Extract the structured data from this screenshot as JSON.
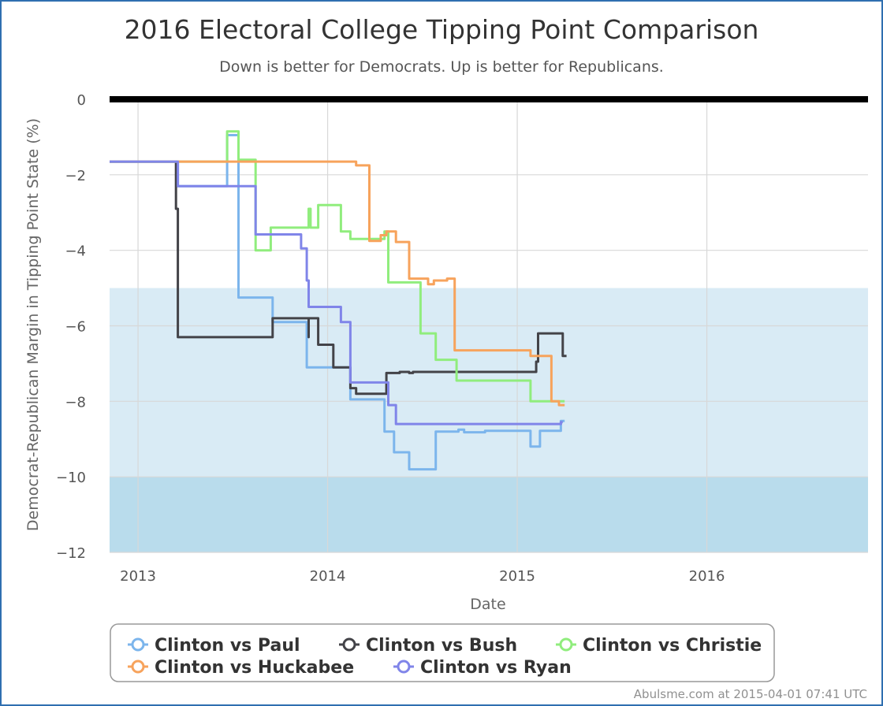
{
  "chart_data": {
    "type": "line",
    "title": "2016 Electoral College Tipping Point Comparison",
    "subtitle": "Down is better for Democrats. Up is better for Republicans.",
    "xlabel": "Date",
    "ylabel": "Democrat-Republican Margin in Tipping Point State (%)",
    "xlim": [
      2012.85,
      2016.85
    ],
    "ylim": [
      -12,
      0
    ],
    "x_ticks": [
      2013,
      2014,
      2015,
      2016
    ],
    "x_tick_labels": [
      "2013",
      "2014",
      "2015",
      "2016"
    ],
    "y_ticks": [
      0,
      -2,
      -4,
      -6,
      -8,
      -10,
      -12
    ],
    "y_tick_labels": [
      "0",
      "−2",
      "−4",
      "−6",
      "−8",
      "−10",
      "−12"
    ],
    "grid": true,
    "bands": [
      {
        "from": -5,
        "to": -10,
        "color": "#d9ebf5"
      },
      {
        "from": -10,
        "to": -12,
        "color": "#b9dcec"
      }
    ],
    "legend_position": "bottom",
    "series": [
      {
        "name": "Clinton vs Paul",
        "color": "#7cb5ec",
        "points": [
          [
            2012.85,
            -1.65
          ],
          [
            2013.21,
            -1.65
          ],
          [
            2013.21,
            -2.3
          ],
          [
            2013.47,
            -2.3
          ],
          [
            2013.47,
            -0.95
          ],
          [
            2013.53,
            -0.95
          ],
          [
            2013.53,
            -5.25
          ],
          [
            2013.71,
            -5.25
          ],
          [
            2013.71,
            -5.9
          ],
          [
            2013.89,
            -5.9
          ],
          [
            2013.89,
            -7.1
          ],
          [
            2014.12,
            -7.1
          ],
          [
            2014.12,
            -7.95
          ],
          [
            2014.3,
            -7.95
          ],
          [
            2014.3,
            -8.8
          ],
          [
            2014.35,
            -8.8
          ],
          [
            2014.35,
            -9.35
          ],
          [
            2014.43,
            -9.35
          ],
          [
            2014.43,
            -9.8
          ],
          [
            2014.57,
            -9.8
          ],
          [
            2014.57,
            -8.8
          ],
          [
            2014.69,
            -8.8
          ],
          [
            2014.69,
            -8.75
          ],
          [
            2014.72,
            -8.75
          ],
          [
            2014.72,
            -8.82
          ],
          [
            2014.83,
            -8.82
          ],
          [
            2014.83,
            -8.78
          ],
          [
            2015.07,
            -8.78
          ],
          [
            2015.07,
            -9.2
          ],
          [
            2015.12,
            -9.2
          ],
          [
            2015.12,
            -8.78
          ],
          [
            2015.23,
            -8.78
          ],
          [
            2015.23,
            -8.52
          ],
          [
            2015.25,
            -8.52
          ]
        ]
      },
      {
        "name": "Clinton vs Bush",
        "color": "#434348",
        "points": [
          [
            2012.85,
            -1.65
          ],
          [
            2013.2,
            -1.65
          ],
          [
            2013.2,
            -2.9
          ],
          [
            2013.21,
            -2.9
          ],
          [
            2013.21,
            -6.3
          ],
          [
            2013.71,
            -6.3
          ],
          [
            2013.71,
            -5.8
          ],
          [
            2013.9,
            -5.8
          ],
          [
            2013.9,
            -6.3
          ],
          [
            2013.9,
            -5.8
          ],
          [
            2013.95,
            -5.8
          ],
          [
            2013.95,
            -6.5
          ],
          [
            2014.03,
            -6.5
          ],
          [
            2014.03,
            -7.1
          ],
          [
            2014.12,
            -7.1
          ],
          [
            2014.12,
            -7.65
          ],
          [
            2014.15,
            -7.65
          ],
          [
            2014.15,
            -7.8
          ],
          [
            2014.31,
            -7.8
          ],
          [
            2014.31,
            -7.25
          ],
          [
            2014.38,
            -7.25
          ],
          [
            2014.38,
            -7.22
          ],
          [
            2014.43,
            -7.22
          ],
          [
            2014.43,
            -7.25
          ],
          [
            2014.45,
            -7.25
          ],
          [
            2014.45,
            -7.22
          ],
          [
            2015.1,
            -7.22
          ],
          [
            2015.1,
            -6.95
          ],
          [
            2015.11,
            -6.95
          ],
          [
            2015.11,
            -6.2
          ],
          [
            2015.24,
            -6.2
          ],
          [
            2015.24,
            -6.8
          ],
          [
            2015.26,
            -6.8
          ]
        ]
      },
      {
        "name": "Clinton vs Christie",
        "color": "#90ed7d",
        "points": [
          [
            2012.85,
            -1.65
          ],
          [
            2013.47,
            -1.65
          ],
          [
            2013.47,
            -0.85
          ],
          [
            2013.53,
            -0.85
          ],
          [
            2013.53,
            -1.6
          ],
          [
            2013.62,
            -1.6
          ],
          [
            2013.62,
            -4.0
          ],
          [
            2013.7,
            -4.0
          ],
          [
            2013.7,
            -3.4
          ],
          [
            2013.9,
            -3.4
          ],
          [
            2013.9,
            -2.9
          ],
          [
            2013.91,
            -2.9
          ],
          [
            2013.91,
            -3.4
          ],
          [
            2013.95,
            -3.4
          ],
          [
            2013.95,
            -2.8
          ],
          [
            2014.07,
            -2.8
          ],
          [
            2014.07,
            -3.5
          ],
          [
            2014.12,
            -3.5
          ],
          [
            2014.12,
            -3.7
          ],
          [
            2014.3,
            -3.7
          ],
          [
            2014.3,
            -3.5
          ],
          [
            2014.32,
            -3.5
          ],
          [
            2014.32,
            -4.85
          ],
          [
            2014.49,
            -4.85
          ],
          [
            2014.49,
            -6.2
          ],
          [
            2014.57,
            -6.2
          ],
          [
            2014.57,
            -6.9
          ],
          [
            2014.68,
            -6.9
          ],
          [
            2014.68,
            -7.45
          ],
          [
            2015.07,
            -7.45
          ],
          [
            2015.07,
            -8.0
          ],
          [
            2015.25,
            -8.0
          ]
        ]
      },
      {
        "name": "Clinton vs Huckabee",
        "color": "#f7a35c",
        "points": [
          [
            2012.85,
            -1.65
          ],
          [
            2014.15,
            -1.65
          ],
          [
            2014.15,
            -1.75
          ],
          [
            2014.22,
            -1.75
          ],
          [
            2014.22,
            -3.75
          ],
          [
            2014.28,
            -3.75
          ],
          [
            2014.28,
            -3.6
          ],
          [
            2014.31,
            -3.6
          ],
          [
            2014.31,
            -3.5
          ],
          [
            2014.36,
            -3.5
          ],
          [
            2014.36,
            -3.78
          ],
          [
            2014.43,
            -3.78
          ],
          [
            2014.43,
            -4.75
          ],
          [
            2014.53,
            -4.75
          ],
          [
            2014.53,
            -4.9
          ],
          [
            2014.56,
            -4.9
          ],
          [
            2014.56,
            -4.8
          ],
          [
            2014.63,
            -4.8
          ],
          [
            2014.63,
            -4.75
          ],
          [
            2014.67,
            -4.75
          ],
          [
            2014.67,
            -6.65
          ],
          [
            2015.07,
            -6.65
          ],
          [
            2015.07,
            -6.8
          ],
          [
            2015.18,
            -6.8
          ],
          [
            2015.18,
            -8.0
          ],
          [
            2015.22,
            -8.0
          ],
          [
            2015.22,
            -8.1
          ],
          [
            2015.25,
            -8.1
          ]
        ]
      },
      {
        "name": "Clinton vs Ryan",
        "color": "#8085e9",
        "points": [
          [
            2012.85,
            -1.65
          ],
          [
            2013.21,
            -1.65
          ],
          [
            2013.21,
            -2.3
          ],
          [
            2013.62,
            -2.3
          ],
          [
            2013.62,
            -3.58
          ],
          [
            2013.86,
            -3.58
          ],
          [
            2013.86,
            -3.95
          ],
          [
            2013.89,
            -3.95
          ],
          [
            2013.89,
            -4.8
          ],
          [
            2013.9,
            -4.8
          ],
          [
            2013.9,
            -5.5
          ],
          [
            2014.07,
            -5.5
          ],
          [
            2014.07,
            -5.9
          ],
          [
            2014.12,
            -5.9
          ],
          [
            2014.12,
            -7.5
          ],
          [
            2014.32,
            -7.5
          ],
          [
            2014.32,
            -8.1
          ],
          [
            2014.36,
            -8.1
          ],
          [
            2014.36,
            -8.6
          ],
          [
            2015.23,
            -8.6
          ],
          [
            2015.23,
            -8.55
          ],
          [
            2015.24,
            -8.55
          ]
        ]
      }
    ]
  },
  "credit": "Abulsme.com at 2015-04-01 07:41 UTC"
}
